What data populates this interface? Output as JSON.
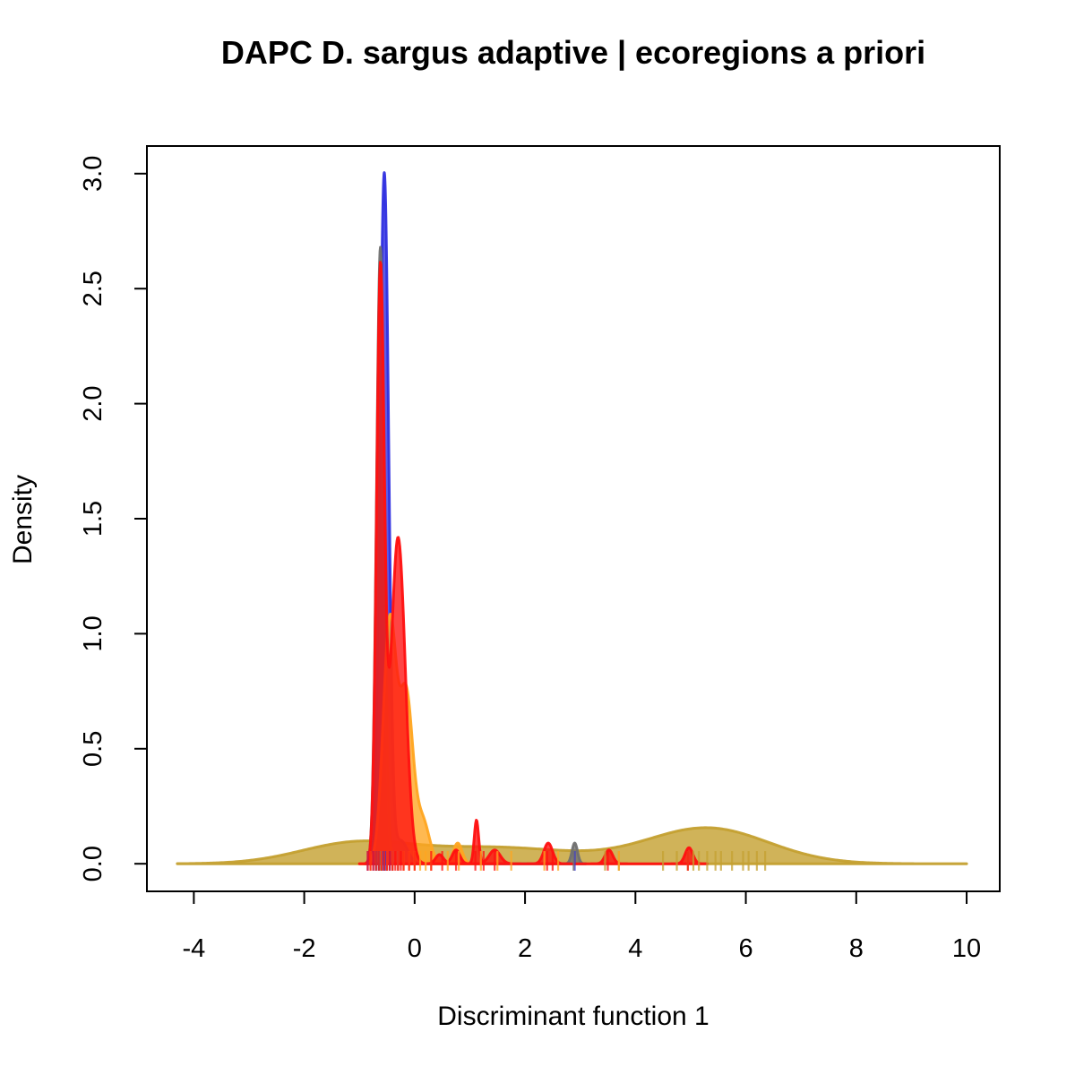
{
  "chart_data": {
    "type": "area",
    "title": "DAPC D. sargus adaptive | ecoregions a priori",
    "xlabel": "Discriminant function 1",
    "ylabel": "Density",
    "xlim": [
      -4.85,
      10.6
    ],
    "ylim": [
      -0.12,
      3.12
    ],
    "xticks": [
      -4,
      -2,
      0,
      2,
      4,
      6,
      8,
      10
    ],
    "yticks": [
      0.0,
      0.5,
      1.0,
      1.5,
      2.0,
      2.5,
      3.0
    ],
    "xtick_labels": [
      "-4",
      "-2",
      "0",
      "2",
      "4",
      "6",
      "8",
      "10"
    ],
    "ytick_labels": [
      "0.0",
      "0.5",
      "1.0",
      "1.5",
      "2.0",
      "2.5",
      "3.0"
    ],
    "grid": false,
    "series": [
      {
        "color": "#C4A030",
        "range": [
          -4.3,
          10.0
        ],
        "peaks": [
          [
            -1.1,
            0.085,
            1.0
          ],
          [
            1.5,
            0.07,
            1.4
          ],
          [
            5.3,
            0.155,
            1.1
          ]
        ],
        "rug": [
          3.45,
          3.7,
          4.5,
          4.75,
          4.95,
          5.05,
          5.15,
          5.3,
          5.45,
          5.55,
          5.75,
          5.95,
          6.05,
          6.2,
          6.35
        ]
      },
      {
        "color": "#3030E0",
        "range": [
          -0.9,
          0.25
        ],
        "peaks": [
          [
            -0.55,
            3.0,
            0.08
          ],
          [
            -0.25,
            0.1,
            0.12
          ]
        ],
        "rug": [
          -0.85,
          -0.75,
          -0.7,
          -0.65,
          -0.6,
          -0.58,
          -0.55,
          -0.52,
          -0.5,
          -0.45,
          -0.4,
          -0.3,
          2.9
        ]
      },
      {
        "color": "#707070",
        "range": [
          -0.9,
          3.1
        ],
        "peaks": [
          [
            -0.62,
            2.68,
            0.07
          ],
          [
            2.9,
            0.09,
            0.05
          ]
        ],
        "rug": [
          -0.7,
          -0.65,
          -0.62,
          -0.6,
          -0.55,
          2.88
        ]
      },
      {
        "color": "#FFA520",
        "range": [
          -1.0,
          1.2
        ],
        "peaks": [
          [
            -0.45,
            1.05,
            0.12
          ],
          [
            -0.15,
            0.72,
            0.12
          ],
          [
            0.15,
            0.18,
            0.12
          ],
          [
            0.78,
            0.09,
            0.08
          ]
        ],
        "rug": [
          -0.8,
          -0.6,
          -0.5,
          -0.4,
          -0.3,
          -0.2,
          -0.1,
          0.0,
          0.1,
          0.2,
          0.3,
          0.6,
          0.8,
          1.2,
          1.5,
          1.75,
          2.35,
          2.6,
          3.7
        ]
      },
      {
        "color": "#FF1010",
        "range": [
          -1.0,
          5.3
        ],
        "peaks": [
          [
            -0.62,
            2.55,
            0.07
          ],
          [
            -0.3,
            1.42,
            0.13
          ],
          [
            0.45,
            0.04,
            0.07
          ],
          [
            0.75,
            0.06,
            0.07
          ],
          [
            1.12,
            0.19,
            0.04
          ],
          [
            1.45,
            0.06,
            0.1
          ],
          [
            2.42,
            0.09,
            0.08
          ],
          [
            3.52,
            0.06,
            0.07
          ],
          [
            4.97,
            0.07,
            0.07
          ]
        ],
        "rug": [
          -0.85,
          -0.8,
          -0.75,
          -0.7,
          -0.65,
          -0.6,
          -0.55,
          -0.5,
          -0.45,
          -0.4,
          -0.35,
          -0.3,
          -0.25,
          -0.2,
          -0.1,
          0.0,
          0.3,
          0.5,
          0.75,
          1.1,
          1.25,
          1.45,
          2.4,
          2.5,
          3.5,
          4.95
        ]
      }
    ]
  }
}
